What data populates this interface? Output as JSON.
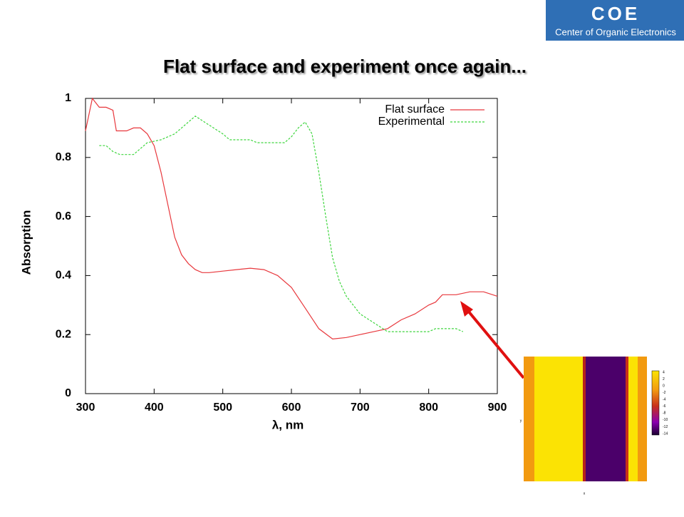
{
  "logo": {
    "mark": "COE",
    "text": "Center of Organic Electronics"
  },
  "chart_data": {
    "type": "line",
    "title": "Flat surface and experiment once again...",
    "x_label": "λ, nm",
    "y_label": "Absorption",
    "xlim": [
      300,
      900
    ],
    "ylim": [
      0,
      1
    ],
    "xticks": [
      300,
      400,
      500,
      600,
      700,
      800,
      900
    ],
    "yticks": [
      0,
      0.2,
      0.4,
      0.6,
      0.8,
      1
    ],
    "legend": "top-right",
    "series": [
      {
        "name": "Flat surface",
        "color": "#e8383d",
        "dash": "none",
        "x": [
          300,
          310,
          320,
          330,
          340,
          345,
          360,
          370,
          380,
          390,
          400,
          410,
          420,
          430,
          440,
          450,
          460,
          470,
          480,
          500,
          520,
          540,
          560,
          580,
          600,
          620,
          640,
          660,
          680,
          700,
          720,
          740,
          760,
          780,
          800,
          810,
          820,
          840,
          860,
          880,
          900
        ],
        "values": [
          0.89,
          1.0,
          0.97,
          0.97,
          0.96,
          0.89,
          0.89,
          0.9,
          0.9,
          0.88,
          0.84,
          0.75,
          0.64,
          0.53,
          0.47,
          0.44,
          0.42,
          0.41,
          0.41,
          0.415,
          0.42,
          0.425,
          0.42,
          0.4,
          0.36,
          0.29,
          0.22,
          0.185,
          0.19,
          0.2,
          0.21,
          0.22,
          0.25,
          0.27,
          0.3,
          0.31,
          0.335,
          0.335,
          0.345,
          0.345,
          0.33
        ]
      },
      {
        "name": "Experimental",
        "color": "#3fd63f",
        "dash": "3,2",
        "x": [
          320,
          330,
          340,
          350,
          370,
          380,
          390,
          410,
          430,
          450,
          460,
          480,
          500,
          510,
          540,
          550,
          580,
          590,
          600,
          610,
          620,
          630,
          640,
          650,
          660,
          670,
          680,
          700,
          720,
          740,
          760,
          780,
          800,
          810,
          820,
          840,
          850
        ],
        "values": [
          0.84,
          0.84,
          0.82,
          0.81,
          0.81,
          0.83,
          0.85,
          0.86,
          0.88,
          0.92,
          0.94,
          0.91,
          0.88,
          0.86,
          0.86,
          0.85,
          0.85,
          0.85,
          0.87,
          0.9,
          0.92,
          0.88,
          0.75,
          0.6,
          0.46,
          0.38,
          0.33,
          0.27,
          0.24,
          0.21,
          0.21,
          0.21,
          0.21,
          0.22,
          0.22,
          0.22,
          0.21
        ]
      }
    ]
  },
  "inset": {
    "colorbar_ticks": [
      4,
      2,
      0,
      -2,
      -4,
      -6,
      -8,
      -10,
      -12,
      -14
    ],
    "x_label": "x",
    "y_label": "y"
  }
}
